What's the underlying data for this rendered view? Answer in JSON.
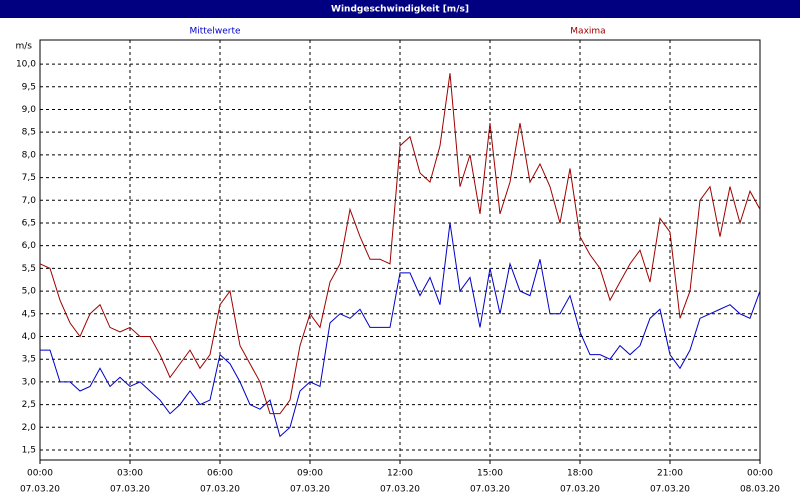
{
  "chart_data": {
    "type": "line",
    "title": "Windgeschwindigkeit [m/s]",
    "y_unit": "m/s",
    "x": [
      0,
      20,
      40,
      60,
      80,
      100,
      120,
      140,
      160,
      180,
      200,
      220,
      240,
      260,
      280,
      300,
      320,
      340,
      360,
      380,
      400,
      420,
      440,
      460,
      480,
      500,
      520,
      540,
      560,
      580,
      600,
      620,
      640,
      660,
      680,
      700,
      720,
      740,
      760,
      780,
      800,
      820,
      840,
      860,
      880,
      900,
      920,
      940,
      960,
      980,
      1000,
      1020,
      1040,
      1060,
      1080,
      1100,
      1120,
      1140,
      1160,
      1180,
      1200,
      1220,
      1240,
      1260,
      1280,
      1300,
      1320,
      1340,
      1360,
      1380,
      1400,
      1420,
      1440
    ],
    "series": [
      {
        "name": "Mittelwerte",
        "color": "#0000c8",
        "values": [
          3.7,
          3.7,
          3.0,
          3.0,
          2.8,
          2.9,
          3.3,
          2.9,
          3.1,
          2.9,
          3.0,
          2.8,
          2.6,
          2.3,
          2.5,
          2.8,
          2.5,
          2.6,
          3.6,
          3.4,
          3.0,
          2.5,
          2.4,
          2.6,
          1.8,
          2.0,
          2.8,
          3.0,
          2.9,
          4.3,
          4.5,
          4.4,
          4.6,
          4.2,
          4.2,
          4.2,
          5.4,
          5.4,
          4.9,
          5.3,
          4.7,
          6.5,
          5.0,
          5.3,
          4.2,
          5.5,
          4.5,
          5.6,
          5.0,
          4.9,
          5.7,
          4.5,
          4.5,
          4.9,
          4.1,
          3.6,
          3.6,
          3.5,
          3.8,
          3.6,
          3.8,
          4.4,
          4.6,
          3.6,
          3.3,
          3.7,
          4.4,
          4.5,
          4.6,
          4.7,
          4.5,
          4.4,
          5.0
        ]
      },
      {
        "name": "Maxima",
        "color": "#a00000",
        "values": [
          5.6,
          5.5,
          4.8,
          4.3,
          4.0,
          4.5,
          4.7,
          4.2,
          4.1,
          4.2,
          4.0,
          4.0,
          3.6,
          3.1,
          3.4,
          3.7,
          3.3,
          3.6,
          4.7,
          5.0,
          3.8,
          3.4,
          3.0,
          2.3,
          2.3,
          2.6,
          3.8,
          4.5,
          4.2,
          5.2,
          5.6,
          6.8,
          6.2,
          5.7,
          5.7,
          5.6,
          8.2,
          8.4,
          7.6,
          7.4,
          8.2,
          9.8,
          7.3,
          8.0,
          6.7,
          8.7,
          6.7,
          7.4,
          8.7,
          7.4,
          7.8,
          7.3,
          6.5,
          7.7,
          6.2,
          5.8,
          5.5,
          4.8,
          5.2,
          5.6,
          5.9,
          5.2,
          6.6,
          6.3,
          4.4,
          5.0,
          7.0,
          7.3,
          6.2,
          7.3,
          6.5,
          7.2,
          6.8
        ]
      }
    ],
    "xlim": [
      0,
      1440
    ],
    "xticks": [
      {
        "value": 0,
        "label": "00:00"
      },
      {
        "value": 180,
        "label": "03:00"
      },
      {
        "value": 360,
        "label": "06:00"
      },
      {
        "value": 540,
        "label": "09:00"
      },
      {
        "value": 720,
        "label": "12:00"
      },
      {
        "value": 900,
        "label": "15:00"
      },
      {
        "value": 1080,
        "label": "18:00"
      },
      {
        "value": 1260,
        "label": "21:00"
      },
      {
        "value": 1440,
        "label": "00:00"
      }
    ],
    "xtick_dates": [
      "07.03.20",
      "07.03.20",
      "07.03.20",
      "07.03.20",
      "07.03.20",
      "07.03.20",
      "07.03.20",
      "07.03.20",
      "08.03.20"
    ],
    "ylim": [
      1.28,
      10.53
    ],
    "yticks": [
      {
        "value": 1.5,
        "label": "1,5"
      },
      {
        "value": 2,
        "label": "2,0"
      },
      {
        "value": 2.5,
        "label": "2,5"
      },
      {
        "value": 3,
        "label": "3,0"
      },
      {
        "value": 3.5,
        "label": "3,5"
      },
      {
        "value": 4,
        "label": "4,0"
      },
      {
        "value": 4.5,
        "label": "4,5"
      },
      {
        "value": 5,
        "label": "5,0"
      },
      {
        "value": 5.5,
        "label": "5,5"
      },
      {
        "value": 6,
        "label": "6,0"
      },
      {
        "value": 6.5,
        "label": "6,5"
      },
      {
        "value": 7,
        "label": "7,0"
      },
      {
        "value": 7.5,
        "label": "7,5"
      },
      {
        "value": 8,
        "label": "8,0"
      },
      {
        "value": 8.5,
        "label": "8,5"
      },
      {
        "value": 9,
        "label": "9,0"
      },
      {
        "value": 9.5,
        "label": "9,5"
      },
      {
        "value": 10,
        "label": "10,0"
      }
    ],
    "grid": true
  }
}
